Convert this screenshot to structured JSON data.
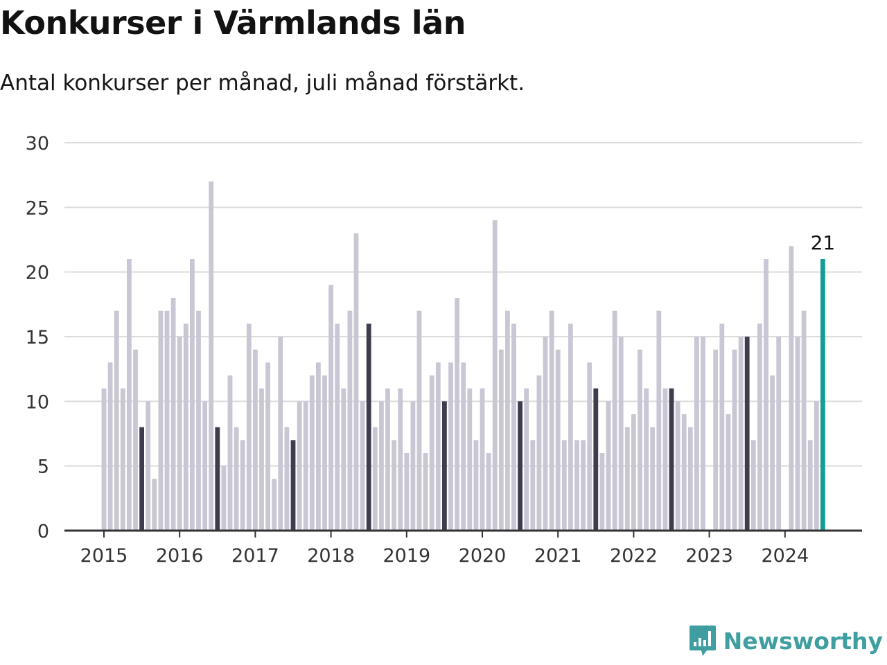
{
  "title": "Konkurser i Värmlands län",
  "subtitle": "Antal konkurser per månad, juli månad förstärkt.",
  "brand": "Newsworthy",
  "colors": {
    "bar": "#c8c7d3",
    "highlight": "#3e3d4e",
    "latest": "#129e94",
    "grid": "#dcdcdc",
    "axis": "#333333"
  },
  "chart_data": {
    "type": "bar",
    "start": "2015-01",
    "ylim": [
      0,
      30
    ],
    "yticks": [
      0,
      5,
      10,
      15,
      20,
      25,
      30
    ],
    "xticks": [
      "2015",
      "2016",
      "2017",
      "2018",
      "2019",
      "2020",
      "2021",
      "2022",
      "2023",
      "2024"
    ],
    "highlight_month": "juli",
    "latest_label": "21",
    "values": [
      11,
      13,
      17,
      11,
      21,
      14,
      8,
      10,
      4,
      17,
      17,
      18,
      15,
      16,
      21,
      17,
      10,
      27,
      8,
      5,
      12,
      8,
      7,
      16,
      14,
      11,
      13,
      4,
      15,
      8,
      7,
      10,
      10,
      12,
      13,
      12,
      19,
      16,
      11,
      17,
      23,
      10,
      16,
      8,
      10,
      11,
      7,
      11,
      6,
      10,
      17,
      6,
      12,
      13,
      10,
      13,
      18,
      13,
      11,
      7,
      11,
      6,
      24,
      14,
      17,
      16,
      10,
      11,
      7,
      12,
      15,
      17,
      14,
      7,
      16,
      7,
      7,
      13,
      11,
      6,
      10,
      17,
      15,
      8,
      9,
      14,
      11,
      8,
      17,
      11,
      11,
      10,
      9,
      8,
      15,
      15,
      0,
      14,
      16,
      9,
      14,
      15,
      15,
      7,
      16,
      21,
      12,
      15,
      0,
      22,
      15,
      17,
      7,
      10,
      21
    ]
  }
}
